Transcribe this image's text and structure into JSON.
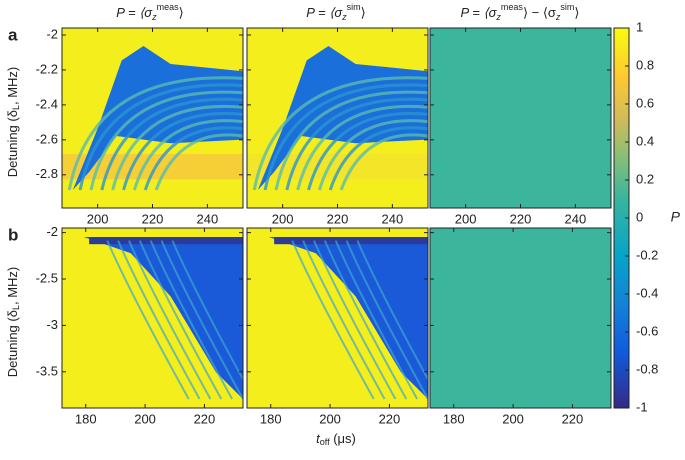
{
  "panel_labels": [
    "a",
    "b"
  ],
  "column_titles": [
    {
      "prefix": "P = ⟨σ",
      "sub": "z",
      "sup": "meas",
      "suffix": "⟩"
    },
    {
      "prefix": "P = ⟨σ",
      "sub": "z",
      "sup": "sim",
      "suffix": "⟩"
    },
    {
      "prefix": "P = ⟨σ",
      "sub": "z",
      "sup": "meas",
      "middle": "⟩ − ⟨σ",
      "sub2": "z",
      "sup2": "sim",
      "suffix": "⟩"
    }
  ],
  "y_axis_label": {
    "text": "Detuning (δ",
    "sub": "L",
    "rest": ", MHz)"
  },
  "x_axis_label": {
    "text": "t",
    "sub": "off",
    "rest": " (μs)"
  },
  "rows": [
    {
      "xlim": [
        187,
        253
      ],
      "xticks": [
        200,
        220,
        240
      ],
      "ylim": [
        -2.99,
        -1.96
      ],
      "yticks": [
        -2,
        -2.2,
        -2.4,
        -2.6,
        -2.8
      ]
    },
    {
      "xlim": [
        172,
        233
      ],
      "xticks": [
        180,
        200,
        220
      ],
      "ylim": [
        -3.89,
        -1.95
      ],
      "yticks": [
        -2,
        -2.5,
        -3,
        -3.5
      ]
    }
  ],
  "colorbar": {
    "label": "P",
    "lim": [
      -1,
      1
    ],
    "ticks": [
      1,
      0.8,
      0.6,
      0.4,
      0.2,
      0,
      -0.2,
      -0.4,
      -0.6,
      -0.8,
      -1
    ]
  }
}
